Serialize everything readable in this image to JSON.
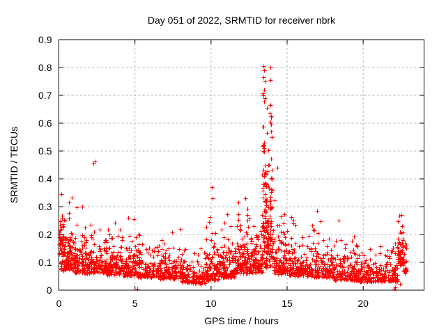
{
  "chart_data": {
    "type": "scatter",
    "title": "Day 051 of 2022, SRMTID for receiver nbrk",
    "xlabel": "GPS time / hours",
    "ylabel": "SRMTID / TECUs",
    "xlim": [
      0,
      24
    ],
    "ylim": [
      0,
      0.9
    ],
    "xticks": [
      0,
      5,
      10,
      15,
      20
    ],
    "yticks": [
      0,
      0.1,
      0.2,
      0.3,
      0.4,
      0.5,
      0.6,
      0.7,
      0.8,
      0.9
    ],
    "grid": "dashed-major-both-axes",
    "legend": "none",
    "marker": "plus",
    "marker_color": "#ff0000",
    "axis_color": "#000000",
    "grid_color": "#b4b4b4",
    "background_color": "#ffffff",
    "seed": 42,
    "clusters": [
      {
        "x0": 0.0,
        "x1": 0.35,
        "n": 45,
        "lo": 0.13,
        "scale": 0.055,
        "hi": 0.35
      },
      {
        "x0": 0.1,
        "x1": 1.1,
        "n": 120,
        "lo": 0.07,
        "scale": 0.055,
        "hi": 0.34
      },
      {
        "x0": 1.0,
        "x1": 2.1,
        "n": 130,
        "lo": 0.06,
        "scale": 0.045,
        "hi": 0.31
      },
      {
        "x0": 2.1,
        "x1": 3.1,
        "n": 110,
        "lo": 0.06,
        "scale": 0.042,
        "hi": 0.3
      },
      {
        "x0": 3.0,
        "x1": 4.2,
        "n": 130,
        "lo": 0.055,
        "scale": 0.042,
        "hi": 0.28
      },
      {
        "x0": 4.2,
        "x1": 5.1,
        "n": 100,
        "lo": 0.05,
        "scale": 0.04,
        "hi": 0.26
      },
      {
        "x0": 5.1,
        "x1": 6.6,
        "n": 140,
        "lo": 0.045,
        "scale": 0.035,
        "hi": 0.22
      },
      {
        "x0": 6.6,
        "x1": 8.1,
        "n": 140,
        "lo": 0.04,
        "scale": 0.038,
        "hi": 0.25
      },
      {
        "x0": 8.1,
        "x1": 9.6,
        "n": 130,
        "lo": 0.025,
        "scale": 0.03,
        "hi": 0.16
      },
      {
        "x0": 9.6,
        "x1": 10.45,
        "n": 100,
        "lo": 0.035,
        "scale": 0.05,
        "hi": 0.37
      },
      {
        "x0": 10.45,
        "x1": 11.55,
        "n": 130,
        "lo": 0.045,
        "scale": 0.045,
        "hi": 0.32
      },
      {
        "x0": 11.55,
        "x1": 12.6,
        "n": 140,
        "lo": 0.06,
        "scale": 0.055,
        "hi": 0.35
      },
      {
        "x0": 12.6,
        "x1": 13.35,
        "n": 110,
        "lo": 0.06,
        "scale": 0.05,
        "hi": 0.33
      },
      {
        "x0": 13.35,
        "x1": 14.1,
        "n": 90,
        "lo": 0.08,
        "scale": 0.1,
        "hi": 0.46
      },
      {
        "x0": 13.38,
        "x1": 13.58,
        "n": 40,
        "lo": 0.18,
        "scale": 0.22,
        "hi": 0.81
      },
      {
        "x0": 13.62,
        "x1": 13.78,
        "n": 22,
        "lo": 0.15,
        "scale": 0.16,
        "hi": 0.66
      },
      {
        "x0": 13.85,
        "x1": 14.0,
        "n": 28,
        "lo": 0.15,
        "scale": 0.22,
        "hi": 0.8
      },
      {
        "x0": 14.1,
        "x1": 15.1,
        "n": 110,
        "lo": 0.055,
        "scale": 0.05,
        "hi": 0.44
      },
      {
        "x0": 15.1,
        "x1": 16.6,
        "n": 140,
        "lo": 0.05,
        "scale": 0.045,
        "hi": 0.3
      },
      {
        "x0": 16.6,
        "x1": 18.1,
        "n": 140,
        "lo": 0.045,
        "scale": 0.045,
        "hi": 0.28
      },
      {
        "x0": 18.1,
        "x1": 19.6,
        "n": 130,
        "lo": 0.035,
        "scale": 0.04,
        "hi": 0.25
      },
      {
        "x0": 19.6,
        "x1": 21.1,
        "n": 130,
        "lo": 0.03,
        "scale": 0.032,
        "hi": 0.18
      },
      {
        "x0": 21.1,
        "x1": 22.25,
        "n": 110,
        "lo": 0.03,
        "scale": 0.03,
        "hi": 0.17
      },
      {
        "x0": 22.25,
        "x1": 22.65,
        "n": 55,
        "lo": 0.09,
        "scale": 0.06,
        "hi": 0.275
      },
      {
        "x0": 22.6,
        "x1": 22.85,
        "n": 20,
        "lo": 0.06,
        "scale": 0.04,
        "hi": 0.19
      }
    ],
    "outliers": [
      [
        0.15,
        0.345
      ],
      [
        1.55,
        0.3
      ],
      [
        2.28,
        0.455
      ],
      [
        2.34,
        0.462
      ],
      [
        5.15,
        0.005
      ],
      [
        9.3,
        0.02
      ],
      [
        10.05,
        0.37
      ],
      [
        10.1,
        0.33
      ],
      [
        11.8,
        0.315
      ],
      [
        12.25,
        0.33
      ],
      [
        13.42,
        0.7
      ],
      [
        13.44,
        0.52
      ],
      [
        13.45,
        0.805
      ],
      [
        13.45,
        0.5
      ],
      [
        13.47,
        0.72
      ],
      [
        13.47,
        0.53
      ],
      [
        13.48,
        0.51
      ],
      [
        13.5,
        0.79
      ],
      [
        13.52,
        0.75
      ],
      [
        13.55,
        0.69
      ],
      [
        13.65,
        0.655
      ],
      [
        13.88,
        0.755
      ],
      [
        13.9,
        0.8
      ],
      [
        13.9,
        0.665
      ],
      [
        13.95,
        0.57
      ],
      [
        14.0,
        0.55
      ],
      [
        14.35,
        0.44
      ],
      [
        16.95,
        0.285
      ],
      [
        18.4,
        0.25
      ],
      [
        22.05,
        0.004
      ],
      [
        22.12,
        0.01
      ],
      [
        22.4,
        0.022
      ],
      [
        22.5,
        0.27
      ]
    ]
  }
}
